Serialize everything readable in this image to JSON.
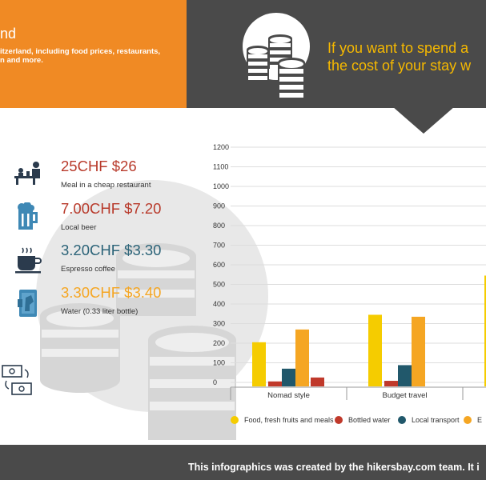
{
  "header": {
    "title": "nd",
    "description_lines": [
      "itzerland, including food prices, restaurants,",
      "n and more."
    ],
    "right_text_lines": [
      "If you want to spend a",
      "the cost of your stay w"
    ]
  },
  "prices": [
    {
      "amount": "25CHF $26",
      "label": "Meal in a cheap restaurant",
      "color": "#b83a2b",
      "icon": "restaurant-icon"
    },
    {
      "amount": "7.00CHF $7.20",
      "label": "Local beer",
      "color": "#b83a2b",
      "icon": "beer-mug-icon"
    },
    {
      "amount": "3.20CHF $3.30",
      "label": "Espresso coffee",
      "color": "#2b6378",
      "icon": "coffee-cup-icon"
    },
    {
      "amount": "3.30CHF $3.40",
      "label": "Water (0.33 liter bottle)",
      "color": "#f5a623",
      "icon": "water-bottle-icon"
    }
  ],
  "footer": {
    "text": "This infographics was created by the hikersbay.com team. It i"
  },
  "chart_data": {
    "type": "bar",
    "categories": [
      "Nomad style",
      "Budget travel",
      ""
    ],
    "series": [
      {
        "name": "Food, fresh fruits and meals",
        "color": "#f5cc00",
        "values": [
          205,
          345,
          545
        ]
      },
      {
        "name": "Bottled water",
        "color": "#c0392b",
        "values": [
          5,
          8,
          null
        ]
      },
      {
        "name": "Local transport",
        "color": "#21586b",
        "values": [
          70,
          88,
          null
        ]
      },
      {
        "name": "E",
        "color": "#f5a623",
        "values": [
          270,
          335,
          null
        ]
      }
    ],
    "extra_bar": {
      "category_index": 0,
      "value": 25,
      "color": "#c0392b"
    },
    "yticks": [
      0,
      100,
      200,
      300,
      400,
      500,
      600,
      700,
      800,
      900,
      1000,
      1100,
      1200
    ],
    "ylim": [
      0,
      1200
    ],
    "grid": true,
    "legend": "bottom"
  }
}
